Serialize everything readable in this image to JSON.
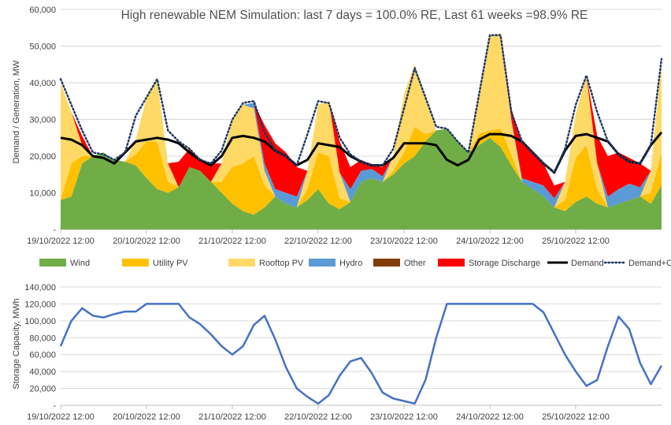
{
  "chart_data": [
    {
      "type": "area",
      "title": "High renewable NEM Simulation: last 7 days = 100.0% RE, Last 61 weeks =98.9% RE",
      "xlabel": "",
      "ylabel": "Demand / Generation, MW",
      "ylim": [
        0,
        60000
      ],
      "yticks": [
        0,
        10000,
        20000,
        30000,
        40000,
        50000,
        60000
      ],
      "ytick_labels": [
        "-",
        "10,000",
        "20,000",
        "30,000",
        "40,000",
        "50,000",
        "60,000"
      ],
      "xlim": [
        0,
        7
      ],
      "xticks": [
        0,
        1,
        2,
        3,
        4,
        5,
        6
      ],
      "xtick_labels": [
        "19/10/2022 12:00",
        "20/10/2022 12:00",
        "21/10/2022 12:00",
        "22/10/2022 12:00",
        "23/10/2022 12:00",
        "24/10/2022 12:00",
        "25/10/2022 12:00"
      ],
      "grid": true,
      "legend_position": "bottom",
      "x": [
        0,
        0.125,
        0.25,
        0.375,
        0.5,
        0.625,
        0.75,
        0.875,
        1,
        1.125,
        1.25,
        1.375,
        1.5,
        1.625,
        1.75,
        1.875,
        2,
        2.125,
        2.25,
        2.375,
        2.5,
        2.625,
        2.75,
        2.875,
        3,
        3.125,
        3.25,
        3.375,
        3.5,
        3.625,
        3.75,
        3.875,
        4,
        4.125,
        4.25,
        4.375,
        4.5,
        4.625,
        4.75,
        4.875,
        5,
        5.125,
        5.25,
        5.375,
        5.5,
        5.625,
        5.75,
        5.875,
        6,
        6.125,
        6.25,
        6.375,
        6.5,
        6.625,
        6.75,
        6.875,
        7
      ],
      "series": [
        {
          "name": "Wind",
          "color": "#70ad47",
          "stacked": true,
          "values": [
            8000,
            9000,
            18000,
            20000,
            21000,
            19000,
            18500,
            17500,
            14000,
            11000,
            10000,
            11500,
            17000,
            16000,
            13000,
            10000,
            7000,
            5000,
            4000,
            6000,
            9000,
            7000,
            6000,
            8000,
            11000,
            7000,
            5500,
            7500,
            13000,
            14000,
            13000,
            15000,
            18000,
            20000,
            24000,
            27000,
            27500,
            24000,
            21000,
            23000,
            25000,
            22500,
            17500,
            13000,
            11000,
            9000,
            6000,
            5000,
            7500,
            9000,
            7000,
            6000,
            7000,
            8000,
            9000,
            7000,
            12000
          ]
        },
        {
          "name": "Utility PV",
          "color": "#ffc000",
          "stacked": true,
          "values": [
            0,
            9000,
            2000,
            0,
            0,
            0,
            0,
            3000,
            10000,
            13000,
            3000,
            0,
            0,
            0,
            0,
            3000,
            10000,
            13000,
            16000,
            6000,
            0,
            0,
            0,
            3000,
            10000,
            13000,
            3000,
            0,
            0,
            0,
            0,
            1000,
            3000,
            8000,
            2000,
            0,
            0,
            0,
            0,
            3000,
            2000,
            5000,
            3000,
            0,
            0,
            0,
            0,
            3000,
            12000,
            14000,
            4000,
            0,
            0,
            0,
            0,
            3000,
            9000
          ]
        },
        {
          "name": "Rooftop PV",
          "color": "#ffd966",
          "stacked": true,
          "values": [
            32000,
            14000,
            3000,
            0,
            0,
            0,
            0,
            4000,
            12000,
            17000,
            5000,
            0,
            0,
            0,
            0,
            5000,
            13000,
            16000,
            13000,
            4000,
            0,
            0,
            0,
            5000,
            13000,
            15000,
            7000,
            0,
            0,
            0,
            0,
            4000,
            16000,
            17000,
            10000,
            0,
            0,
            0,
            0,
            11000,
            26000,
            26000,
            9000,
            0,
            0,
            0,
            0,
            5000,
            12000,
            19000,
            7000,
            0,
            0,
            0,
            0,
            6000,
            25000
          ]
        },
        {
          "name": "Hydro",
          "color": "#5b9bd5",
          "stacked": true,
          "values": [
            0,
            0,
            0,
            0,
            0,
            0,
            0,
            0,
            0,
            0,
            0,
            0,
            0,
            0,
            0,
            0,
            0,
            0,
            1500,
            2000,
            2000,
            3000,
            3000,
            0,
            0,
            0,
            0,
            3500,
            3000,
            2500,
            1500,
            0,
            0,
            0,
            0,
            0,
            0,
            0,
            0,
            0,
            0,
            0,
            500,
            1000,
            2000,
            3000,
            2500,
            0,
            0,
            0,
            0,
            3000,
            4000,
            4500,
            2500,
            0,
            0
          ]
        },
        {
          "name": "Other",
          "color": "#843c0c",
          "stacked": true,
          "values": [
            0,
            0,
            0,
            0,
            0,
            0,
            0,
            0,
            0,
            0,
            0,
            0,
            0,
            0,
            0,
            0,
            0,
            0,
            0,
            0,
            0,
            0,
            0,
            0,
            0,
            0,
            0,
            0,
            0,
            0,
            0,
            0,
            0,
            0,
            0,
            0,
            0,
            0,
            0,
            0,
            0,
            0,
            0,
            0,
            0,
            0,
            0,
            0,
            0,
            0,
            0,
            0,
            0,
            0,
            0,
            0,
            0
          ]
        },
        {
          "name": "Storage Discharge",
          "color": "#ff0000",
          "stacked": true,
          "values": [
            0,
            0,
            2500,
            0,
            0,
            0,
            0,
            0,
            0,
            0,
            0,
            7000,
            5000,
            3000,
            5000,
            0,
            0,
            0,
            0,
            10500,
            12500,
            11000,
            8000,
            0,
            0,
            0,
            8500,
            6000,
            3000,
            1000,
            2500,
            0,
            0,
            0,
            0,
            0,
            0,
            0,
            0,
            0,
            0,
            0,
            3000,
            9500,
            8000,
            6000,
            3500,
            0,
            0,
            0,
            7500,
            11000,
            10000,
            7000,
            6500,
            0,
            0
          ]
        },
        {
          "name": "Demand",
          "color": "#000000",
          "stacked": false,
          "line": "solid",
          "values": [
            25000,
            24500,
            23000,
            20000,
            19500,
            18000,
            21000,
            24000,
            24500,
            25000,
            24500,
            23500,
            21000,
            19000,
            17500,
            20000,
            25000,
            25500,
            25000,
            24000,
            21500,
            20000,
            17500,
            19000,
            23500,
            23000,
            22500,
            20000,
            18500,
            17500,
            17500,
            19500,
            23500,
            23500,
            23500,
            23000,
            19000,
            17500,
            19000,
            24500,
            26000,
            26000,
            25500,
            24000,
            21000,
            18000,
            15500,
            21500,
            25500,
            26000,
            25000,
            24000,
            20500,
            18500,
            18000,
            23000,
            26500
          ]
        },
        {
          "name": "Demand+Charge",
          "color": "#1f3864",
          "stacked": false,
          "line": "dotted",
          "values": [
            41000,
            34000,
            27000,
            21000,
            20500,
            19000,
            21000,
            31000,
            36000,
            41000,
            27000,
            24000,
            22000,
            19000,
            18000,
            21500,
            30000,
            34500,
            35000,
            26500,
            21500,
            20000,
            17500,
            26000,
            35000,
            34500,
            25000,
            20500,
            18500,
            17500,
            17500,
            22000,
            33000,
            44000,
            36000,
            28000,
            27500,
            24000,
            21000,
            37000,
            53000,
            53000,
            32000,
            24000,
            21000,
            18000,
            15500,
            22000,
            34000,
            42000,
            32000,
            24000,
            20500,
            18500,
            18000,
            23000,
            46500
          ]
        }
      ]
    },
    {
      "type": "line",
      "title": "",
      "xlabel": "",
      "ylabel": "Storage Capacity, MWh",
      "ylim": [
        0,
        140000
      ],
      "yticks": [
        0,
        20000,
        40000,
        60000,
        80000,
        100000,
        120000,
        140000
      ],
      "ytick_labels": [
        "-",
        "20,000",
        "40,000",
        "60,000",
        "80,000",
        "100,000",
        "120,000",
        "140,000"
      ],
      "xlim": [
        0,
        7
      ],
      "xticks": [
        0,
        1,
        2,
        3,
        4,
        5,
        6
      ],
      "xtick_labels": [
        "19/10/2022 12:00",
        "20/10/2022 12:00",
        "21/10/2022 12:00",
        "22/10/2022 12:00",
        "23/10/2022 12:00",
        "24/10/2022 12:00",
        "25/10/2022 12:00"
      ],
      "grid": true,
      "x": [
        0,
        0.125,
        0.25,
        0.375,
        0.5,
        0.625,
        0.75,
        0.875,
        1,
        1.125,
        1.25,
        1.375,
        1.5,
        1.625,
        1.75,
        1.875,
        2,
        2.125,
        2.25,
        2.375,
        2.5,
        2.625,
        2.75,
        2.875,
        3,
        3.125,
        3.25,
        3.375,
        3.5,
        3.625,
        3.75,
        3.875,
        4,
        4.125,
        4.25,
        4.375,
        4.5,
        4.625,
        4.75,
        4.875,
        5,
        5.125,
        5.25,
        5.375,
        5.5,
        5.625,
        5.75,
        5.875,
        6,
        6.125,
        6.25,
        6.375,
        6.5,
        6.625,
        6.75,
        6.875,
        7
      ],
      "series": [
        {
          "name": "Storage Capacity",
          "color": "#4472c4",
          "values": [
            70000,
            100000,
            115000,
            106000,
            104000,
            108000,
            111000,
            111000,
            120000,
            120000,
            120000,
            120000,
            104000,
            96000,
            84000,
            70000,
            60000,
            70000,
            95000,
            106000,
            78000,
            45000,
            20000,
            10000,
            2000,
            12000,
            35000,
            52000,
            56000,
            38000,
            15000,
            8000,
            5000,
            2000,
            30000,
            80000,
            120000,
            120000,
            120000,
            120000,
            120000,
            120000,
            120000,
            120000,
            120000,
            110000,
            85000,
            60000,
            40000,
            23000,
            30000,
            70000,
            105000,
            90000,
            50000,
            25000,
            47000
          ]
        }
      ]
    }
  ]
}
